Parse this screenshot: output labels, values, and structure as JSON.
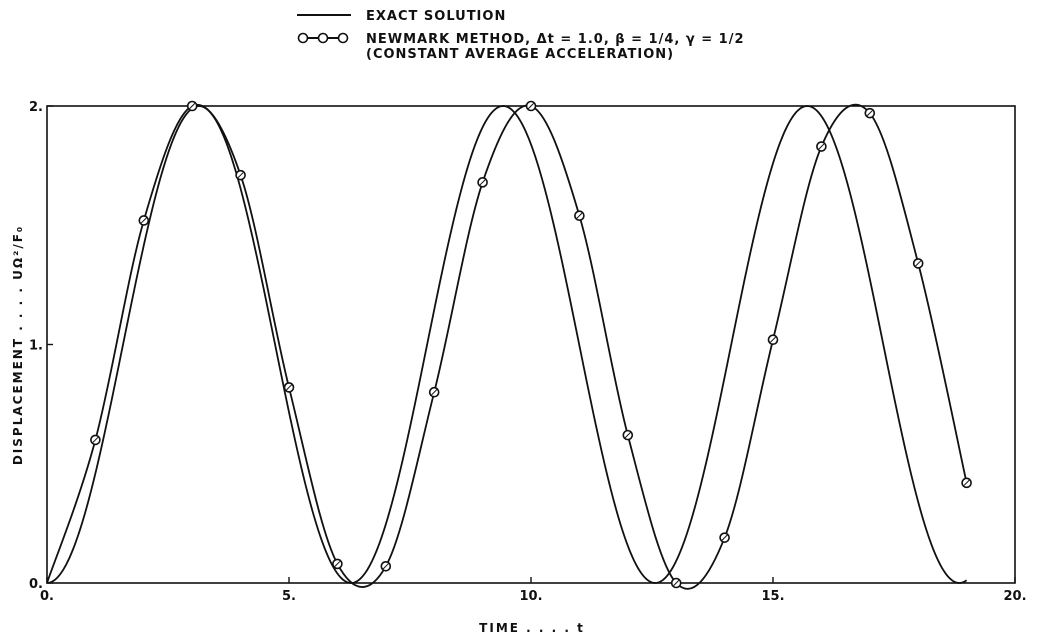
{
  "chart_data": {
    "type": "line",
    "xlabel": "TIME . . . . t",
    "ylabel": "DISPLACEMENT . . . . UΩ²/F₀",
    "xlim": [
      0,
      20
    ],
    "ylim": [
      0,
      2
    ],
    "xticks": [
      {
        "value": 0,
        "label": "0."
      },
      {
        "value": 5,
        "label": "5."
      },
      {
        "value": 10,
        "label": "10."
      },
      {
        "value": 15,
        "label": "15."
      },
      {
        "value": 20,
        "label": "20."
      }
    ],
    "yticks": [
      {
        "value": 0,
        "label": "0."
      },
      {
        "value": 1,
        "label": "1."
      },
      {
        "value": 2,
        "label": "2."
      }
    ],
    "grid": false,
    "legend_placement": "top-center",
    "series": [
      {
        "name": "EXACT SOLUTION",
        "style": "line",
        "function": "1 - cos(t)",
        "x_range": [
          0,
          19
        ]
      },
      {
        "name": "NEWMARK METHOD, Δt = 1.0, β = 1/4, γ = 1/2",
        "name_line2": "(CONSTANT AVERAGE ACCELERATION)",
        "style": "line-with-circle-markers",
        "x": [
          0,
          1,
          2,
          3,
          4,
          5,
          6,
          7,
          8,
          9,
          10,
          11,
          12,
          13,
          14,
          15,
          16,
          17,
          18,
          19
        ],
        "y": [
          0,
          0.6,
          1.52,
          2.0,
          1.71,
          0.82,
          0.08,
          0.07,
          0.8,
          1.68,
          2.0,
          1.54,
          0.62,
          0.0,
          0.19,
          1.02,
          1.83,
          1.97,
          1.34,
          0.42
        ]
      }
    ]
  }
}
